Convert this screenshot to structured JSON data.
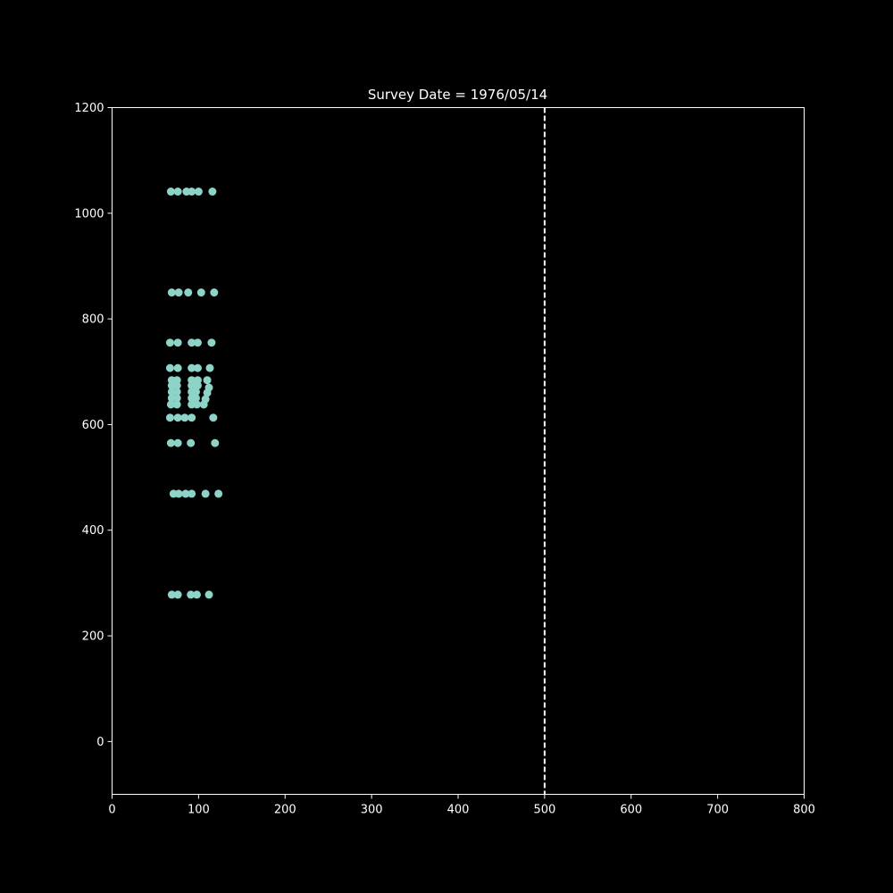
{
  "chart_data": {
    "type": "scatter",
    "title": "Survey Date = 1976/05/14",
    "xlabel": "",
    "ylabel": "",
    "xlim": [
      0,
      800
    ],
    "ylim": [
      -100,
      1200
    ],
    "xticks": [
      0,
      100,
      200,
      300,
      400,
      500,
      600,
      700,
      800
    ],
    "yticks": [
      0,
      200,
      400,
      600,
      800,
      1000,
      1200
    ],
    "grid": false,
    "colors": {
      "background": "#000000",
      "foreground": "#ffffff",
      "points": "#8dd3c7",
      "reference_line": "#ffffff"
    },
    "reference_line": {
      "orientation": "vertical",
      "x": 500,
      "style": "dashed"
    },
    "series": [
      {
        "points": [
          [
            68,
            1041
          ],
          [
            76,
            1041
          ],
          [
            86,
            1041
          ],
          [
            92,
            1041
          ],
          [
            100,
            1041
          ],
          [
            116,
            1041
          ],
          [
            69,
            850
          ],
          [
            77,
            850
          ],
          [
            88,
            850
          ],
          [
            103,
            850
          ],
          [
            118,
            850
          ],
          [
            67,
            755
          ],
          [
            76,
            755
          ],
          [
            92,
            755
          ],
          [
            99,
            755
          ],
          [
            115,
            755
          ],
          [
            67,
            707
          ],
          [
            76,
            707
          ],
          [
            92,
            707
          ],
          [
            99,
            707
          ],
          [
            113,
            707
          ],
          [
            69,
            684
          ],
          [
            75,
            684
          ],
          [
            92,
            684
          ],
          [
            99,
            684
          ],
          [
            110,
            684
          ],
          [
            69,
            674
          ],
          [
            75,
            674
          ],
          [
            92,
            674
          ],
          [
            99,
            674
          ],
          [
            112,
            670
          ],
          [
            69,
            662
          ],
          [
            75,
            662
          ],
          [
            92,
            662
          ],
          [
            97,
            662
          ],
          [
            110,
            660
          ],
          [
            69,
            650
          ],
          [
            75,
            650
          ],
          [
            92,
            650
          ],
          [
            97,
            650
          ],
          [
            108,
            648
          ],
          [
            68,
            638
          ],
          [
            75,
            638
          ],
          [
            92,
            638
          ],
          [
            98,
            638
          ],
          [
            106,
            638
          ],
          [
            67,
            613
          ],
          [
            76,
            613
          ],
          [
            84,
            613
          ],
          [
            92,
            613
          ],
          [
            117,
            613
          ],
          [
            68,
            565
          ],
          [
            76,
            565
          ],
          [
            91,
            565
          ],
          [
            119,
            565
          ],
          [
            71,
            469
          ],
          [
            77,
            469
          ],
          [
            85,
            469
          ],
          [
            92,
            469
          ],
          [
            108,
            469
          ],
          [
            123,
            469
          ],
          [
            69,
            278
          ],
          [
            76,
            278
          ],
          [
            91,
            278
          ],
          [
            98,
            278
          ],
          [
            112,
            278
          ]
        ]
      }
    ]
  }
}
